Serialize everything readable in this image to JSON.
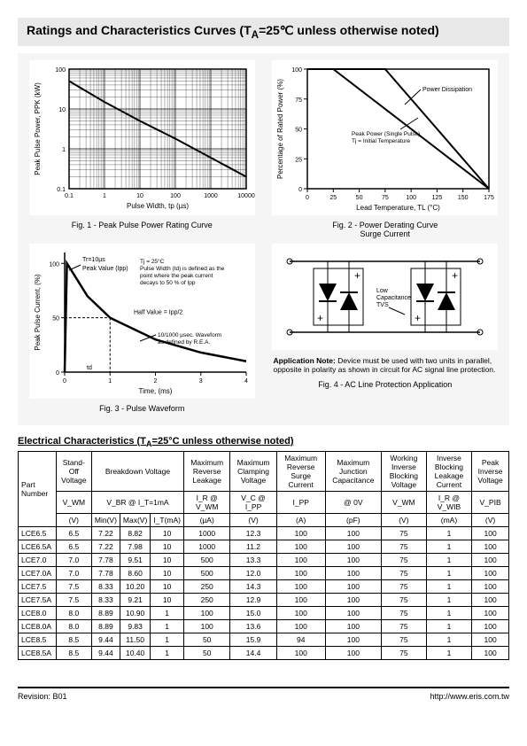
{
  "title": "Ratings and Characteristics Curves (T",
  "title_sub": "A",
  "title_tail": "=25℃ unless otherwise noted)",
  "fig1": {
    "caption": "Fig. 1 - Peak Pulse Power Rating Curve",
    "xlabel": "Pulse Width, tp (µs)",
    "ylabel": "Peak Pulse Power, PPK (kW)",
    "xlim": [
      0.1,
      10000
    ],
    "ylim": [
      0.1,
      100
    ],
    "scale": "log-log",
    "xticks": [
      "0.1",
      "1",
      "10",
      "100",
      "1000",
      "10000"
    ],
    "yticks": [
      "0.1",
      "1",
      "10",
      "100"
    ],
    "line_color": "#000000",
    "grid_color": "#000000",
    "data": [
      [
        0.1,
        50
      ],
      [
        1,
        15
      ],
      [
        10,
        5
      ],
      [
        100,
        1.8
      ],
      [
        1000,
        0.6
      ],
      [
        10000,
        0.2
      ]
    ]
  },
  "fig2": {
    "caption": "Fig. 2 - Power Derating Curve",
    "subcaption": "Surge Current",
    "xlabel": "Lead Temperature, TL (°C)",
    "ylabel": "Percentage of Rated Power (%)",
    "xlim": [
      0,
      175
    ],
    "ylim": [
      0,
      100
    ],
    "xticks": [
      "0",
      "25",
      "50",
      "75",
      "100",
      "125",
      "150",
      "175"
    ],
    "yticks": [
      "0",
      "25",
      "50",
      "75",
      "100"
    ],
    "labels": [
      "Power Dissipation",
      "Peak Power (Single Pulse) Tj = Initial Temperature"
    ],
    "line1": [
      [
        0,
        100
      ],
      [
        25,
        100
      ],
      [
        175,
        0
      ]
    ],
    "line2": [
      [
        0,
        100
      ],
      [
        75,
        100
      ],
      [
        175,
        0
      ]
    ],
    "line_color": "#000000"
  },
  "fig3": {
    "caption": "Fig. 3 - Pulse Waveform",
    "xlabel": "Time, (ms)",
    "ylabel": "Peak Pulse Current, (%)",
    "xlim": [
      0,
      4
    ],
    "ylim": [
      0,
      110
    ],
    "xticks": [
      "0",
      "1",
      "2",
      "3",
      "4"
    ],
    "yticks": [
      "0",
      "50",
      "100"
    ],
    "annotations": [
      "Tr=10µs",
      "Peak Value (Ipp)",
      "Tj = 25°C",
      "Pulse Width (td) is defined as the point where the peak current decays to 50 % of Ipp",
      "Half Value = Ipp/2",
      "10/1000 µsec. Waveform as defined by R.E.A.",
      "td"
    ],
    "curve": [
      [
        0,
        0
      ],
      [
        0.05,
        100
      ],
      [
        0.5,
        70
      ],
      [
        1,
        50
      ],
      [
        2,
        30
      ],
      [
        3,
        18
      ],
      [
        4,
        10
      ]
    ],
    "line_color": "#000000"
  },
  "fig4": {
    "caption": "Fig. 4 - AC Line Protection Application",
    "note_label": "Application Note:",
    "note_text": " Device must be used with two units in parallel, opposite in polarity as shown in circuit for AC signal line protection.",
    "label": "Low Capacitance TVS"
  },
  "table": {
    "title": "Electrical Characteristics (T",
    "title_sub": "A",
    "title_tail": "=25°C unless otherwise noted)",
    "headers_r1": [
      "Part Number",
      "Stand-Off Voltage",
      "Breakdown Voltage",
      "Maximum Reverse Leakage",
      "Maximum Clamping Voltage",
      "Maximum Reverse Surge Current",
      "Maximum Junction Capacitance",
      "Working Inverse Blocking Voltage",
      "Inverse Blocking Leakage Current",
      "Peak Inverse Voltage"
    ],
    "headers_r2": [
      "V_WM",
      "V_BR @ I_T=1mA",
      "I_R @ V_WM",
      "V_C @ I_PP",
      "I_PP",
      "@ 0V",
      "V_WM",
      "I_R @ V_WIB",
      "V_PIB"
    ],
    "headers_r3": [
      "(V)",
      "Min(V)",
      "Max(V)",
      "I_T(mA)",
      "(µA)",
      "(V)",
      "(A)",
      "(pF)",
      "(V)",
      "(mA)",
      "(V)"
    ],
    "rows": [
      [
        "LCE6.5",
        "6.5",
        "7.22",
        "8.82",
        "10",
        "1000",
        "12.3",
        "100",
        "100",
        "75",
        "1",
        "100"
      ],
      [
        "LCE6.5A",
        "6.5",
        "7.22",
        "7.98",
        "10",
        "1000",
        "11.2",
        "100",
        "100",
        "75",
        "1",
        "100"
      ],
      [
        "LCE7.0",
        "7.0",
        "7.78",
        "9.51",
        "10",
        "500",
        "13.3",
        "100",
        "100",
        "75",
        "1",
        "100"
      ],
      [
        "LCE7.0A",
        "7.0",
        "7.78",
        "8.60",
        "10",
        "500",
        "12.0",
        "100",
        "100",
        "75",
        "1",
        "100"
      ],
      [
        "LCE7.5",
        "7.5",
        "8.33",
        "10.20",
        "10",
        "250",
        "14.3",
        "100",
        "100",
        "75",
        "1",
        "100"
      ],
      [
        "LCE7.5A",
        "7.5",
        "8.33",
        "9.21",
        "10",
        "250",
        "12.9",
        "100",
        "100",
        "75",
        "1",
        "100"
      ],
      [
        "LCE8.0",
        "8.0",
        "8.89",
        "10.90",
        "1",
        "100",
        "15.0",
        "100",
        "100",
        "75",
        "1",
        "100"
      ],
      [
        "LCE8.0A",
        "8.0",
        "8.89",
        "9.83",
        "1",
        "100",
        "13.6",
        "100",
        "100",
        "75",
        "1",
        "100"
      ],
      [
        "LCE8.5",
        "8.5",
        "9.44",
        "11.50",
        "1",
        "50",
        "15.9",
        "94",
        "100",
        "75",
        "1",
        "100"
      ],
      [
        "LCE8.5A",
        "8.5",
        "9.44",
        "10.40",
        "1",
        "50",
        "14.4",
        "100",
        "100",
        "75",
        "1",
        "100"
      ]
    ]
  },
  "footer": {
    "left": "Revision: B01",
    "right": "http://www.eris.com.tw"
  }
}
